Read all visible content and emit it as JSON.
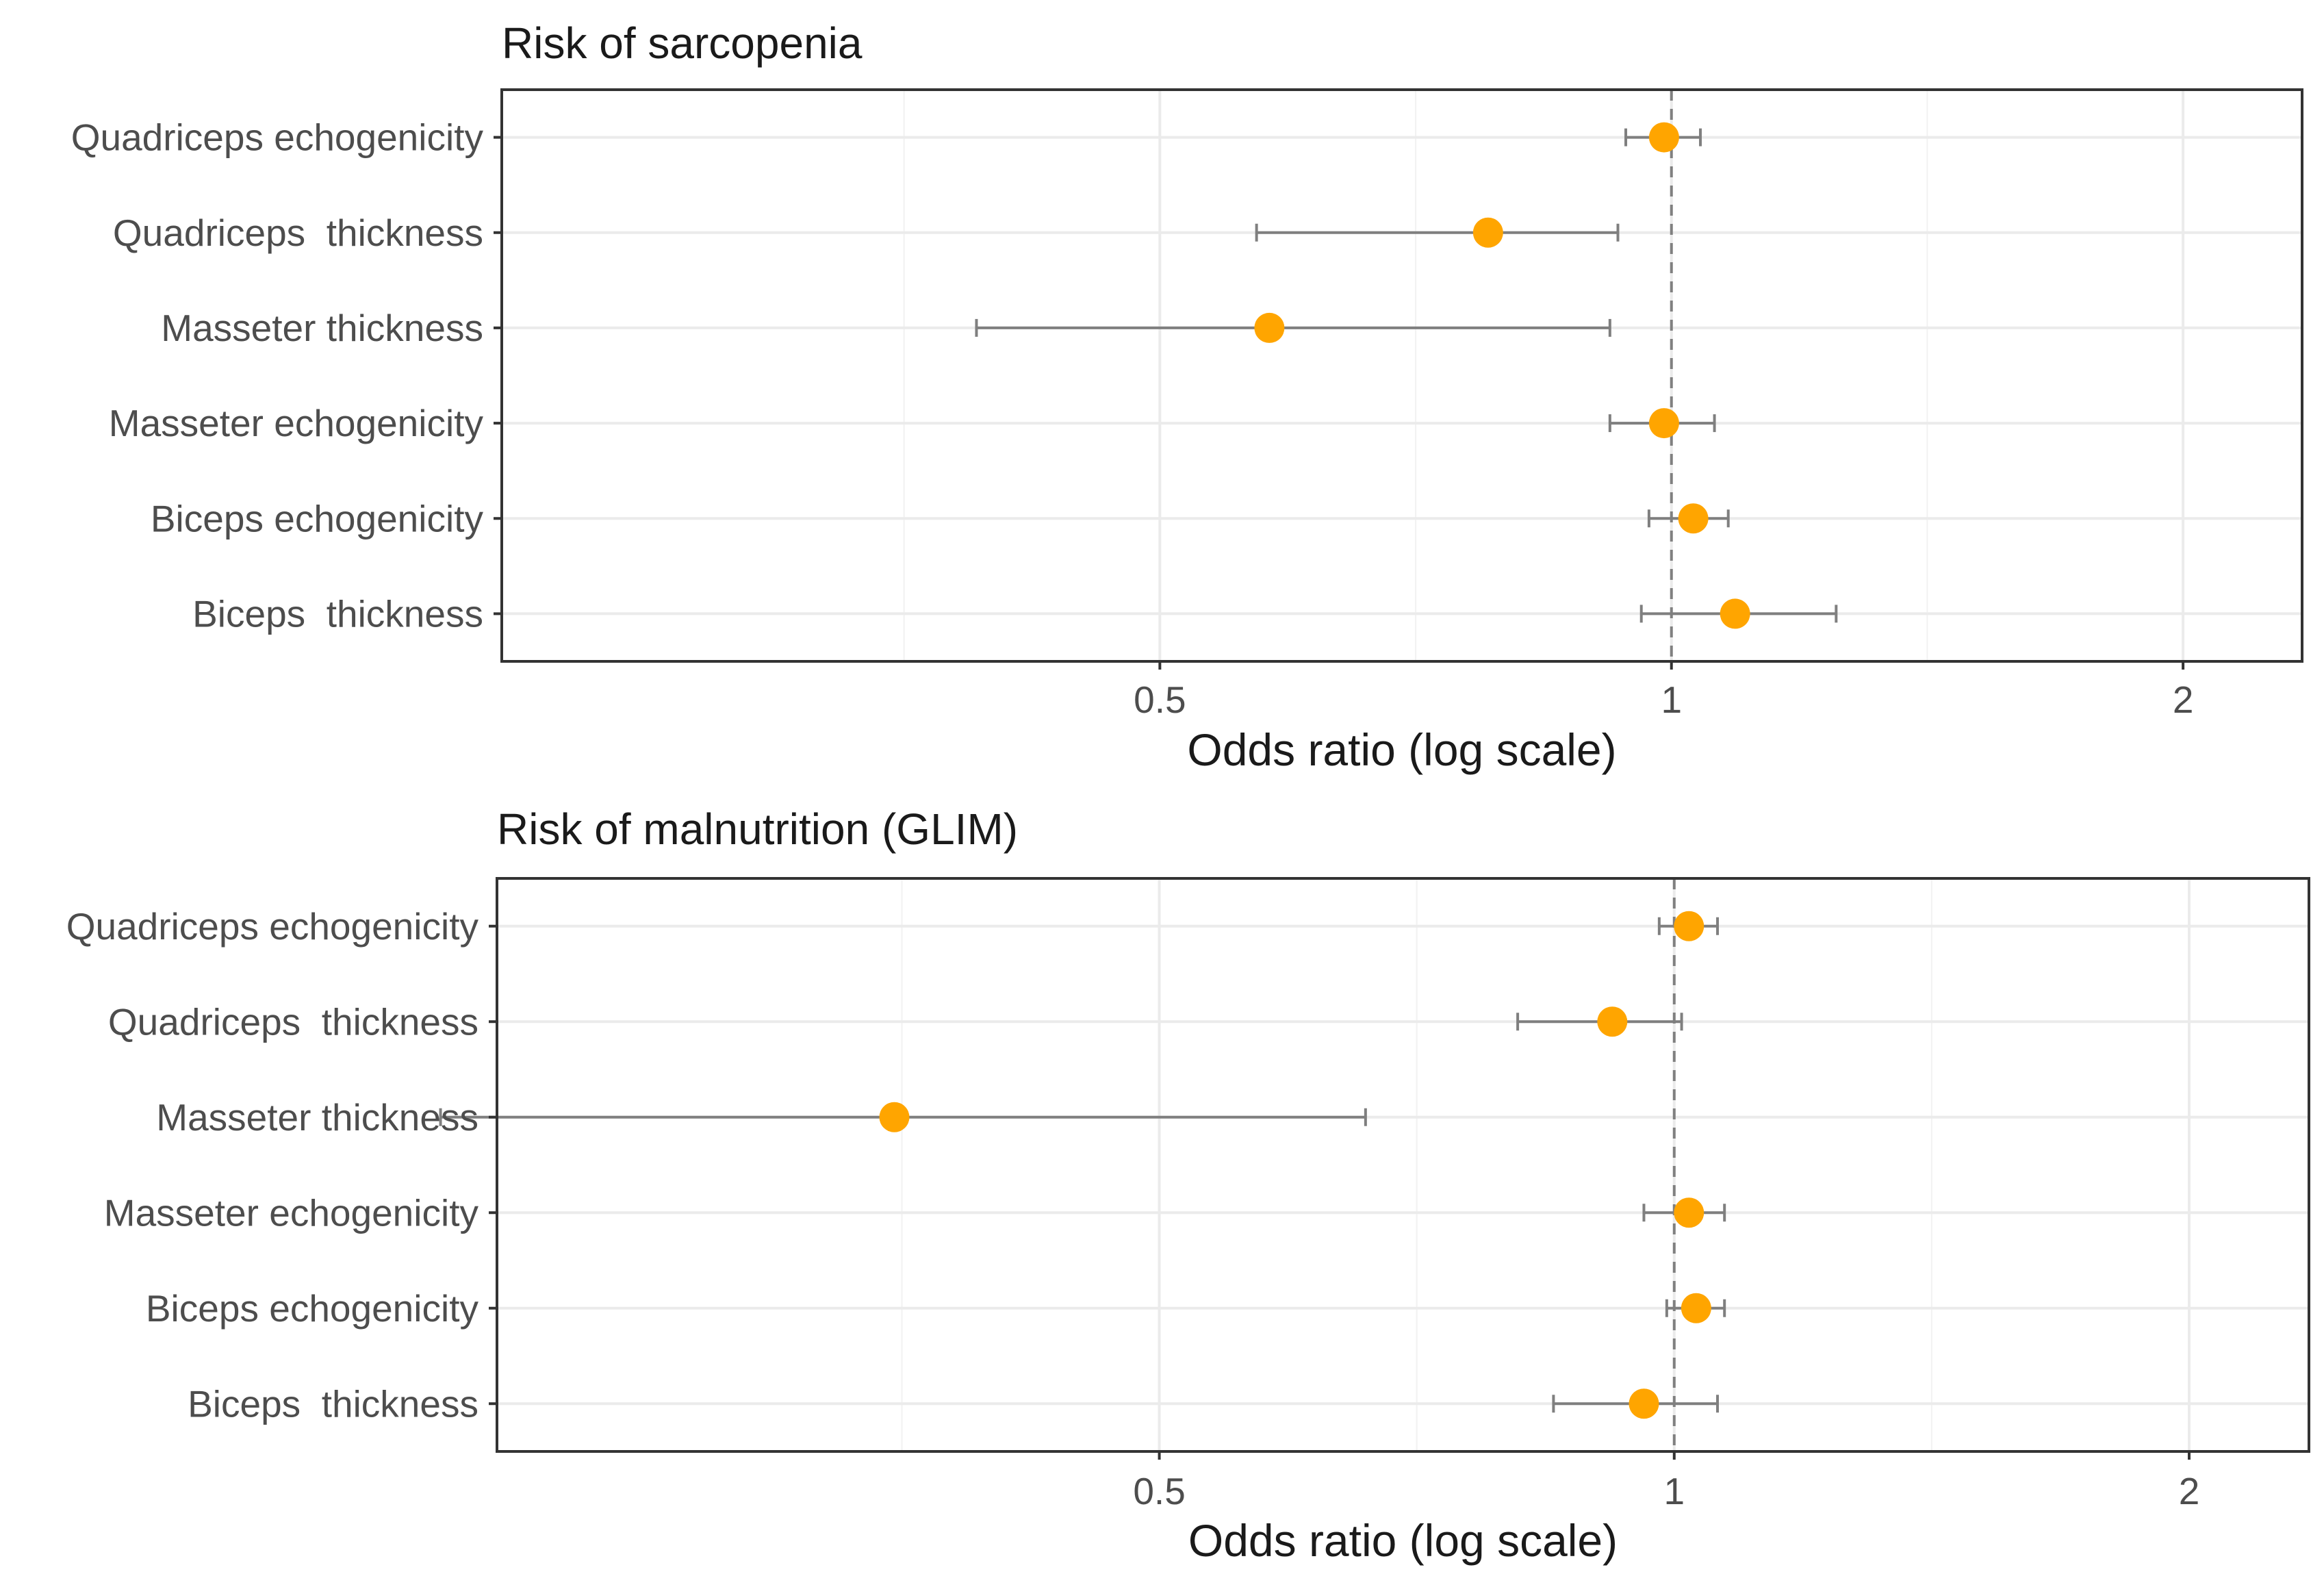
{
  "chart_data": [
    {
      "type": "forest",
      "title": "Risk of sarcopenia",
      "xlabel": "Odds ratio (log scale)",
      "ylabel": "",
      "x_scale": "log",
      "xlim": [
        0.205,
        2.35
      ],
      "xticks": [
        0.5,
        1,
        2
      ],
      "xtick_labels": [
        "0.5",
        "1",
        "2"
      ],
      "reference_line": 1,
      "grid": true,
      "point_color": "#FFA500",
      "errorbar_color": "#7f7f7f",
      "categories": [
        "Quadriceps echogenicity",
        "Quadriceps  thickness",
        "Masseter thickness",
        "Masseter echogenicity",
        "Biceps echogenicity",
        "Biceps  thickness"
      ],
      "estimates": [
        0.99,
        0.78,
        0.58,
        0.99,
        1.03,
        1.09
      ],
      "ci_lower": [
        0.94,
        0.57,
        0.39,
        0.92,
        0.97,
        0.96
      ],
      "ci_upper": [
        1.04,
        0.93,
        0.92,
        1.06,
        1.08,
        1.25
      ]
    },
    {
      "type": "forest",
      "title": "Risk of malnutrition (GLIM)",
      "xlabel": "Odds ratio (log scale)",
      "ylabel": "",
      "x_scale": "log",
      "xlim": [
        0.205,
        2.35
      ],
      "xticks": [
        0.5,
        1,
        2
      ],
      "xtick_labels": [
        "0.5",
        "1",
        "2"
      ],
      "reference_line": 1,
      "grid": true,
      "point_color": "#FFA500",
      "errorbar_color": "#7f7f7f",
      "categories": [
        "Quadriceps echogenicity",
        "Quadriceps  thickness",
        "Masseter thickness",
        "Masseter echogenicity",
        "Biceps echogenicity",
        "Biceps  thickness"
      ],
      "estimates": [
        1.02,
        0.92,
        0.35,
        1.02,
        1.03,
        0.96
      ],
      "ci_lower": [
        0.98,
        0.81,
        0.19,
        0.96,
        0.99,
        0.85
      ],
      "ci_upper": [
        1.06,
        1.01,
        0.66,
        1.07,
        1.07,
        1.06
      ]
    }
  ]
}
